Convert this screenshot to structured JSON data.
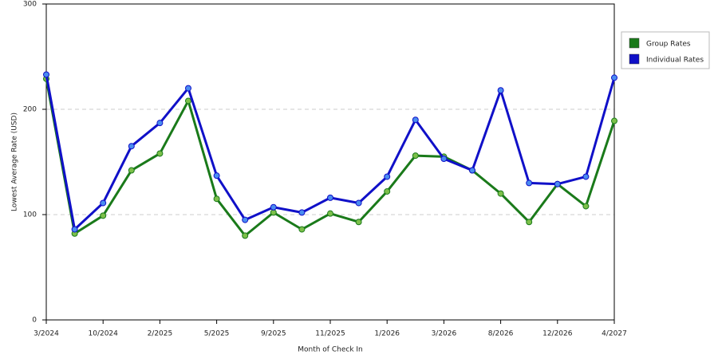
{
  "chart_data": {
    "type": "line",
    "x_label": "Month of Check In",
    "y_label": "Lowest Average Rate (USD)",
    "categories": [
      "3/2024",
      null,
      "10/2024",
      null,
      "2/2025",
      null,
      "5/2025",
      null,
      "9/2025",
      null,
      "11/2025",
      null,
      "1/2026",
      null,
      "3/2026",
      null,
      "8/2026",
      null,
      "12/2026",
      null,
      "4/2027"
    ],
    "series": [
      {
        "name": "Group Rates",
        "color": "#1a7a1a",
        "values": [
          229,
          82,
          99,
          142,
          158,
          208,
          115,
          80,
          102,
          86,
          101,
          93,
          122,
          156,
          155,
          142,
          120,
          93,
          129,
          108,
          189
        ]
      },
      {
        "name": "Individual Rates",
        "color": "#1010c8",
        "values": [
          233,
          86,
          111,
          165,
          187,
          220,
          137,
          95,
          107,
          102,
          116,
          111,
          136,
          190,
          153,
          142,
          218,
          130,
          129,
          136,
          230
        ]
      }
    ],
    "ylim": [
      0,
      300
    ],
    "yticks": [
      0,
      100,
      200,
      300
    ],
    "grid": true,
    "legend": "right"
  }
}
